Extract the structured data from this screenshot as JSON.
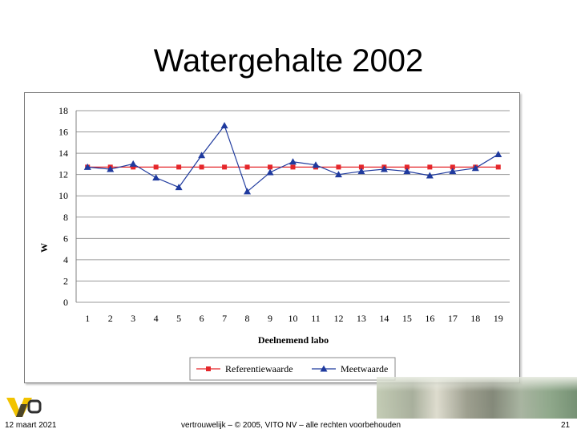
{
  "slide": {
    "title": "Watergehalte 2002",
    "footer_date": "12 maart 2021",
    "footer_note": "vertrouwelijk – © 2005, VITO NV – alle rechten voorbehouden",
    "page_number": "21"
  },
  "colors": {
    "series_reference": "#e5262a",
    "series_measured": "#1f3a9e",
    "grid": "#999999",
    "axis_text": "#000000"
  },
  "chart_data": {
    "type": "line",
    "title": "",
    "xlabel": "Deelnemend labo",
    "ylabel": "W",
    "ylim": [
      0,
      18
    ],
    "yticks": [
      0,
      2,
      4,
      6,
      8,
      10,
      12,
      14,
      16,
      18
    ],
    "grid": true,
    "legend_position": "bottom",
    "categories": [
      "1",
      "2",
      "3",
      "4",
      "5",
      "6",
      "7",
      "8",
      "9",
      "10",
      "11",
      "12",
      "13",
      "14",
      "15",
      "16",
      "17",
      "18",
      "19"
    ],
    "series": [
      {
        "name": "Referentiewaarde",
        "marker": "square",
        "color": "#e5262a",
        "values": [
          12.7,
          12.7,
          12.7,
          12.7,
          12.7,
          12.7,
          12.7,
          12.7,
          12.7,
          12.7,
          12.7,
          12.7,
          12.7,
          12.7,
          12.7,
          12.7,
          12.7,
          12.7,
          12.7
        ]
      },
      {
        "name": "Meetwaarde",
        "marker": "triangle",
        "color": "#1f3a9e",
        "values": [
          12.7,
          12.5,
          13.0,
          11.7,
          10.8,
          13.8,
          16.6,
          10.4,
          12.2,
          13.2,
          12.9,
          12.0,
          12.3,
          12.5,
          12.3,
          11.9,
          12.3,
          12.6,
          13.9
        ]
      }
    ]
  }
}
